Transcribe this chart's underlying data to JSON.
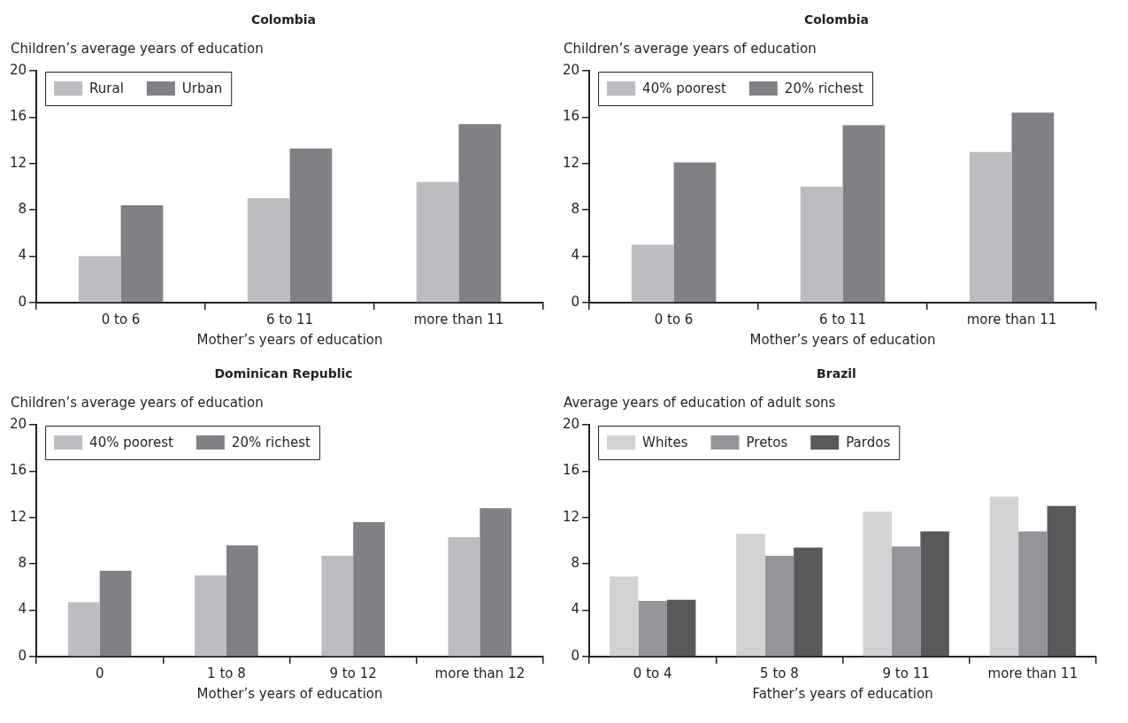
{
  "chart_data": [
    {
      "type": "bar",
      "title": "Colombia",
      "ylabel": "Children’s average years of education",
      "xlabel": "Mother’s years of education",
      "categories": [
        "0 to 6",
        "6 to 11",
        "more than 11"
      ],
      "series": [
        {
          "name": "Rural",
          "color": "#bcbdc0",
          "values": [
            4.0,
            9.0,
            10.4
          ]
        },
        {
          "name": "Urban",
          "color": "#808184",
          "values": [
            8.4,
            13.3,
            15.4
          ]
        }
      ],
      "ylim": [
        0,
        20
      ],
      "yticks": [
        0,
        4,
        8,
        12,
        16,
        20
      ],
      "grid": false,
      "legend": "top left"
    },
    {
      "type": "bar",
      "title": "Colombia",
      "ylabel": "Children’s average years of education",
      "xlabel": "Mother’s years of education",
      "categories": [
        "0 to 6",
        "6 to 11",
        "more than 11"
      ],
      "series": [
        {
          "name": "40% poorest",
          "color": "#bcbdc0",
          "values": [
            5.0,
            10.0,
            13.0
          ]
        },
        {
          "name": "20% richest",
          "color": "#808184",
          "values": [
            12.1,
            15.3,
            16.4
          ]
        }
      ],
      "ylim": [
        0,
        20
      ],
      "yticks": [
        0,
        4,
        8,
        12,
        16,
        20
      ],
      "grid": false,
      "legend": "top left"
    },
    {
      "type": "bar",
      "title": "Dominican Republic",
      "ylabel": "Children’s average  years of education",
      "xlabel": "Mother’s years of education",
      "categories": [
        "0",
        "1 to 8",
        "9 to 12",
        "more than 12"
      ],
      "series": [
        {
          "name": "40% poorest",
          "color": "#bcbdc0",
          "values": [
            4.7,
            7.0,
            8.7,
            10.3
          ]
        },
        {
          "name": "20% richest",
          "color": "#808184",
          "values": [
            7.4,
            9.6,
            11.6,
            12.8
          ]
        }
      ],
      "ylim": [
        0,
        20
      ],
      "yticks": [
        0,
        4,
        8,
        12,
        16,
        20
      ],
      "grid": false,
      "legend": "top left"
    },
    {
      "type": "bar",
      "title": "Brazil",
      "ylabel": "Average years of education of adult sons",
      "xlabel": "Father’s years of education",
      "categories": [
        "0 to 4",
        "5 to 8",
        "9 to 11",
        "more than 11"
      ],
      "series": [
        {
          "name": "Whites",
          "color": "#d1d2d4",
          "values": [
            6.9,
            10.6,
            12.5,
            13.8
          ]
        },
        {
          "name": "Pretos",
          "color": "#939598",
          "values": [
            4.8,
            8.7,
            9.5,
            10.8
          ]
        },
        {
          "name": "Pardos",
          "color": "#58595b",
          "values": [
            4.9,
            9.4,
            10.8,
            13.0
          ]
        }
      ],
      "ylim": [
        0,
        20
      ],
      "yticks": [
        0,
        4,
        8,
        12,
        16,
        20
      ],
      "grid": false,
      "legend": "top left"
    }
  ]
}
